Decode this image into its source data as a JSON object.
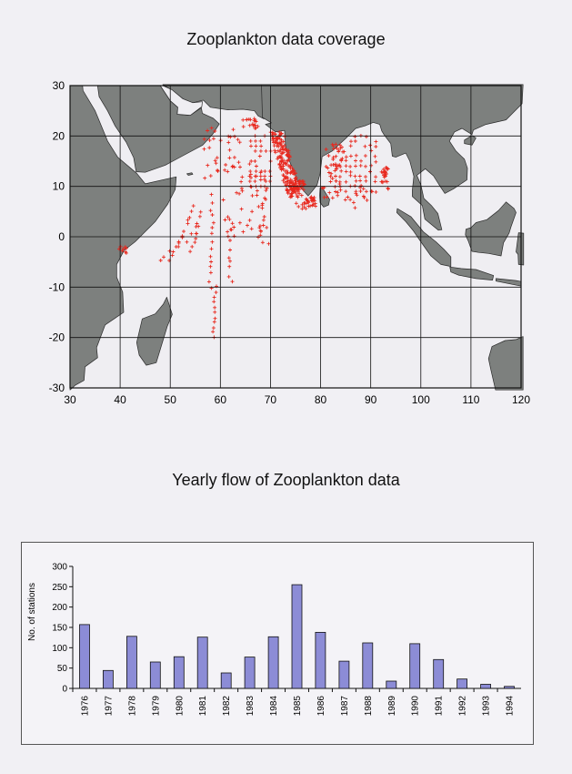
{
  "map": {
    "title": "Zooplankton data coverage",
    "land_color": "#7d807e",
    "sea_color": "#efeef2",
    "point_color": "#e8281e",
    "x_ticks": [
      "30",
      "40",
      "50",
      "60",
      "70",
      "80",
      "90",
      "100",
      "110",
      "120"
    ],
    "y_ticks": [
      "30",
      "20",
      "10",
      "0",
      "-10",
      "-20",
      "-30"
    ],
    "xlim": [
      30,
      120
    ],
    "ylim": [
      -30,
      30
    ],
    "grid": "on"
  },
  "chart_data": {
    "type": "bar",
    "title": "Yearly flow of Zooplankton data",
    "ylabel": "No. of stations",
    "xlabel": "",
    "ylim": [
      0,
      300
    ],
    "y_ticks": [
      "0",
      "50",
      "100",
      "150",
      "200",
      "250",
      "300"
    ],
    "bar_color": "#8c8cd6",
    "categories": [
      "1976",
      "1977",
      "1978",
      "1979",
      "1980",
      "1981",
      "1982",
      "1983",
      "1984",
      "1985",
      "1986",
      "1987",
      "1988",
      "1989",
      "1990",
      "1991",
      "1992",
      "1993",
      "1994"
    ],
    "values": [
      157,
      44,
      128,
      65,
      78,
      126,
      38,
      77,
      127,
      255,
      138,
      67,
      112,
      18,
      110,
      71,
      23,
      10,
      5
    ]
  }
}
